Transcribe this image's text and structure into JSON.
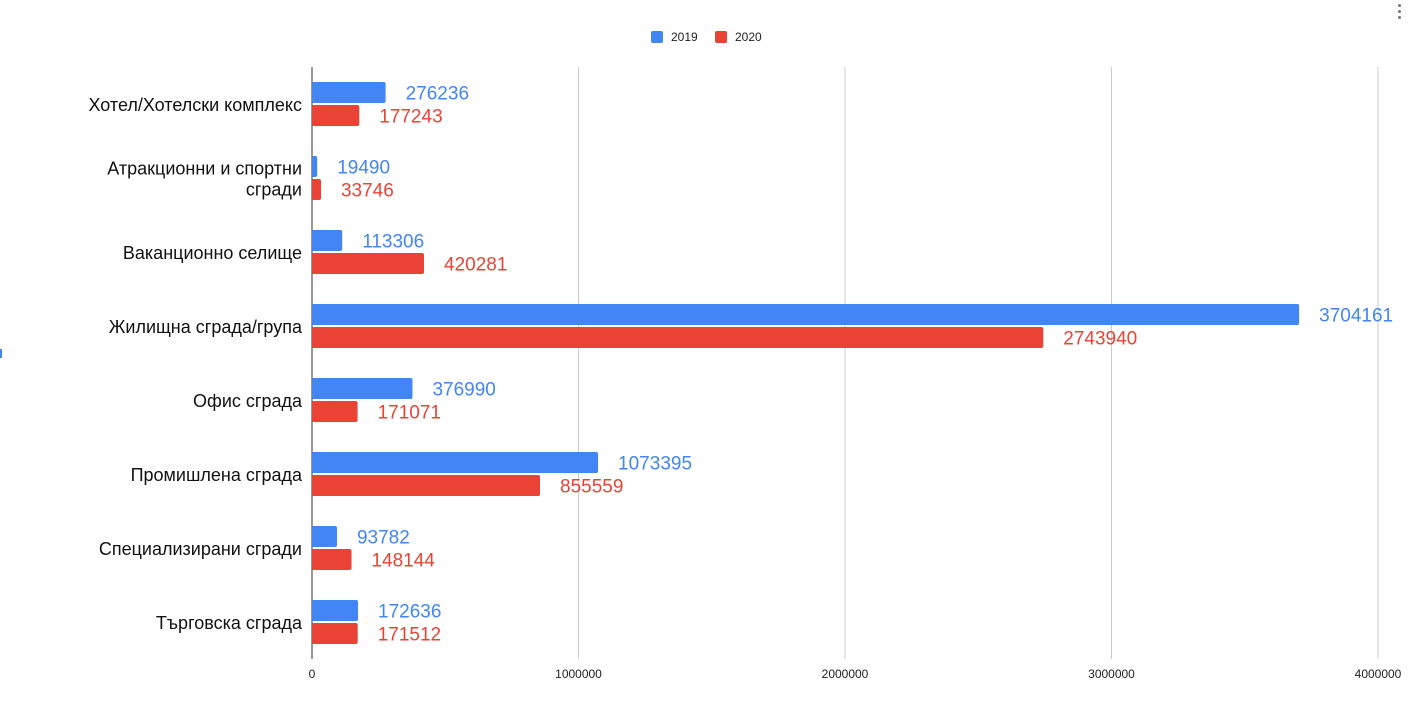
{
  "chart_data": {
    "type": "bar",
    "orientation": "horizontal",
    "categories": [
      [
        "Хотел/Хотелски комплекс"
      ],
      [
        "Атракционни и спортни",
        "сгради"
      ],
      [
        "Ваканционно селище"
      ],
      [
        "Жилищна сграда/група"
      ],
      [
        "Офис сграда"
      ],
      [
        "Промишлена сграда"
      ],
      [
        "Специализирани сгради"
      ],
      [
        "Търговска сграда"
      ]
    ],
    "series": [
      {
        "name": "2019",
        "color": "#4285f4",
        "values": [
          276236,
          19490,
          113306,
          3704161,
          376990,
          1073395,
          93782,
          172636
        ],
        "labels": [
          "276236",
          "19490",
          "113306",
          "3704161",
          "376990",
          "1073395",
          "93782",
          "172636"
        ]
      },
      {
        "name": "2020",
        "color": "#ea4335",
        "values": [
          177243,
          33746,
          420281,
          2743940,
          171071,
          855559,
          148144,
          171512
        ],
        "labels": [
          "177243",
          "33746",
          "420281",
          "2743940",
          "171071",
          "855559",
          "148144",
          "171512"
        ]
      }
    ],
    "xlim": [
      0,
      4000000
    ],
    "x_ticks": [
      0,
      1000000,
      2000000,
      3000000,
      4000000
    ],
    "x_tick_labels": [
      "0",
      "1000000",
      "2000000",
      "3000000",
      "4000000"
    ],
    "grid": true,
    "legend_position": "top-center",
    "data_labels": true
  }
}
